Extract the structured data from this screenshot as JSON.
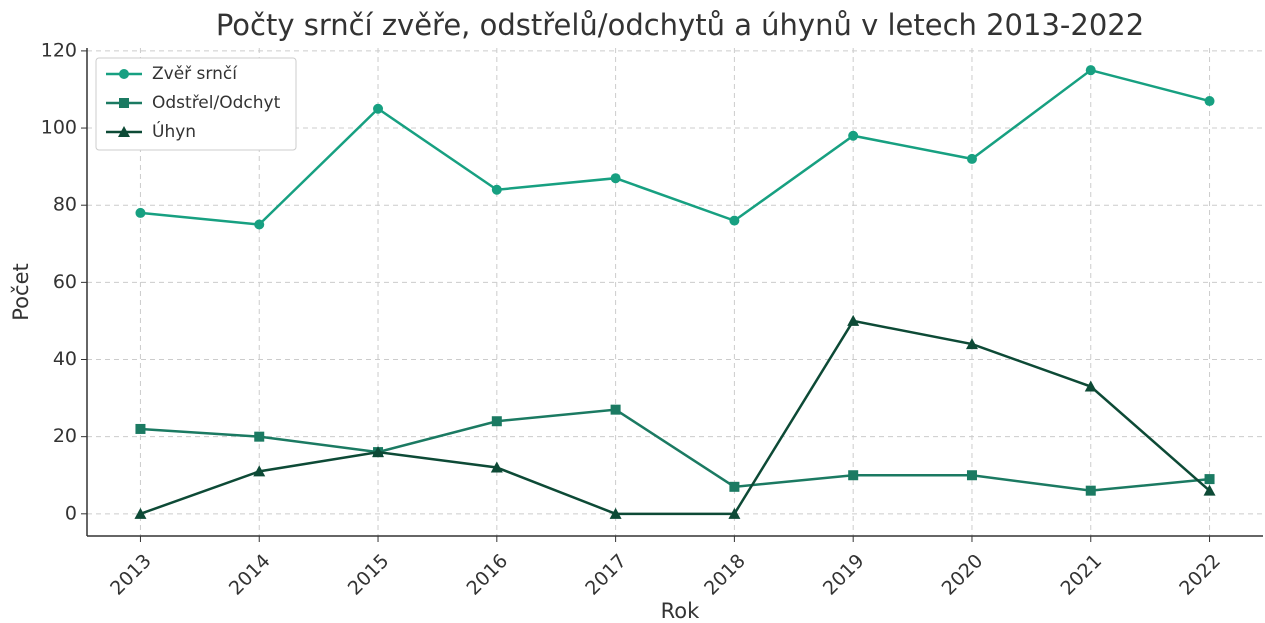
{
  "chart_data": {
    "type": "line",
    "title": "Počty srnčí zvěře, odstřelů/odchytů a úhynů v letech 2013-2022",
    "x_label": "Rok",
    "y_label": "Počet",
    "x": [
      2013,
      2014,
      2015,
      2016,
      2017,
      2018,
      2019,
      2020,
      2021,
      2022
    ],
    "series": [
      {
        "name": "Zvěř srnčí",
        "color": "#17a081",
        "marker": "circle",
        "values": [
          78,
          75,
          105,
          84,
          87,
          76,
          98,
          92,
          115,
          107
        ]
      },
      {
        "name": "Odstřel/Odchyt",
        "color": "#1b7a62",
        "marker": "square",
        "values": [
          22,
          20,
          16,
          24,
          27,
          7,
          10,
          10,
          6,
          9
        ]
      },
      {
        "name": "Úhyn",
        "color": "#0d4a36",
        "marker": "triangle",
        "values": [
          0,
          11,
          16,
          12,
          0,
          0,
          50,
          44,
          33,
          6
        ]
      }
    ],
    "xlim": [
      2012.55,
      2022.45
    ],
    "xticks": [
      2013,
      2014,
      2015,
      2016,
      2017,
      2018,
      2019,
      2020,
      2021,
      2022
    ],
    "ylim": [
      -5.75,
      120.75
    ],
    "yticks": [
      0,
      20,
      40,
      60,
      80,
      100,
      120
    ],
    "grid": true,
    "legend": "upper-left"
  }
}
